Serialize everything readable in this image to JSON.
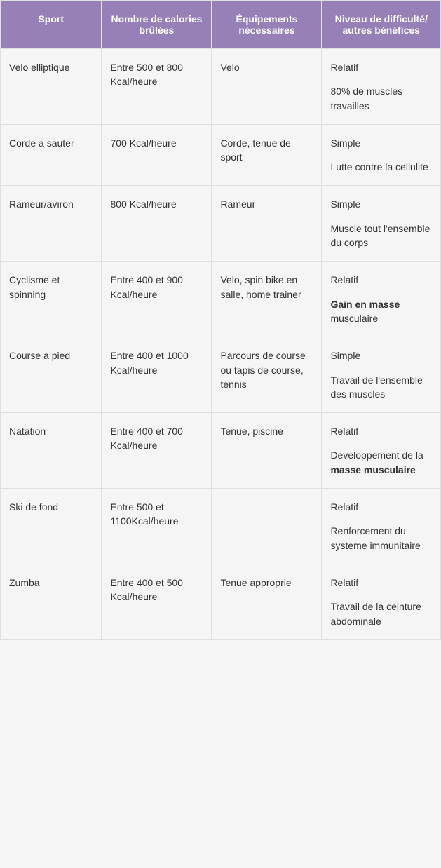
{
  "table": {
    "header_bg": "#9680b7",
    "header_color": "#ffffff",
    "cell_bg": "#f5f5f5",
    "border_color": "#e0e0e0",
    "text_color": "#333333",
    "font_size": 14,
    "columns": [
      "Sport",
      "Nombre de calories brûlées",
      "Équipements nécessaires",
      "Niveau de difficulté/ autres bénéfices"
    ],
    "rows": [
      {
        "sport": "Velo elliptique",
        "calories": "Entre 500 et 800 Kcal/heure",
        "equip": "Velo",
        "diff_line1": "Relatif",
        "diff_line2_html": "80% de muscles travailles"
      },
      {
        "sport": "Corde a sauter",
        "calories": "700 Kcal/heure",
        "equip": "Corde, tenue de sport",
        "diff_line1": "Simple",
        "diff_line2_html": "Lutte contre la cellulite"
      },
      {
        "sport": "Rameur/aviron",
        "calories": "800 Kcal/heure",
        "equip": "Rameur",
        "diff_line1": "Simple",
        "diff_line2_html": "Muscle tout l'ensemble du corps"
      },
      {
        "sport": "Cyclisme et spinning",
        "calories": "Entre 400 et 900 Kcal/heure",
        "equip": "Velo, spin bike en salle, home trainer",
        "diff_line1": "Relatif",
        "diff_line2_html": "<strong>Gain en masse</strong> musculaire"
      },
      {
        "sport": "Course a pied",
        "calories": "Entre 400 et 1000 Kcal/heure",
        "equip": "Parcours de course ou tapis de course, tennis",
        "diff_line1": "Simple",
        "diff_line2_html": "Travail de l'ensemble des muscles"
      },
      {
        "sport": "Natation",
        "calories": "Entre 400 et 700 Kcal/heure",
        "equip": "Tenue, piscine",
        "diff_line1": "Relatif",
        "diff_line2_html": "Developpement de la <strong>masse musculaire</strong>"
      },
      {
        "sport": "Ski de fond",
        "calories": "Entre 500 et 1100Kcal/heure",
        "equip": "",
        "diff_line1": "Relatif",
        "diff_line2_html": "Renforcement du systeme immunitaire"
      },
      {
        "sport": "Zumba",
        "calories": "Entre 400 et 500 Kcal/heure",
        "equip": "Tenue approprie",
        "diff_line1": "Relatif",
        "diff_line2_html": "Travail de la ceinture abdominale"
      }
    ]
  }
}
